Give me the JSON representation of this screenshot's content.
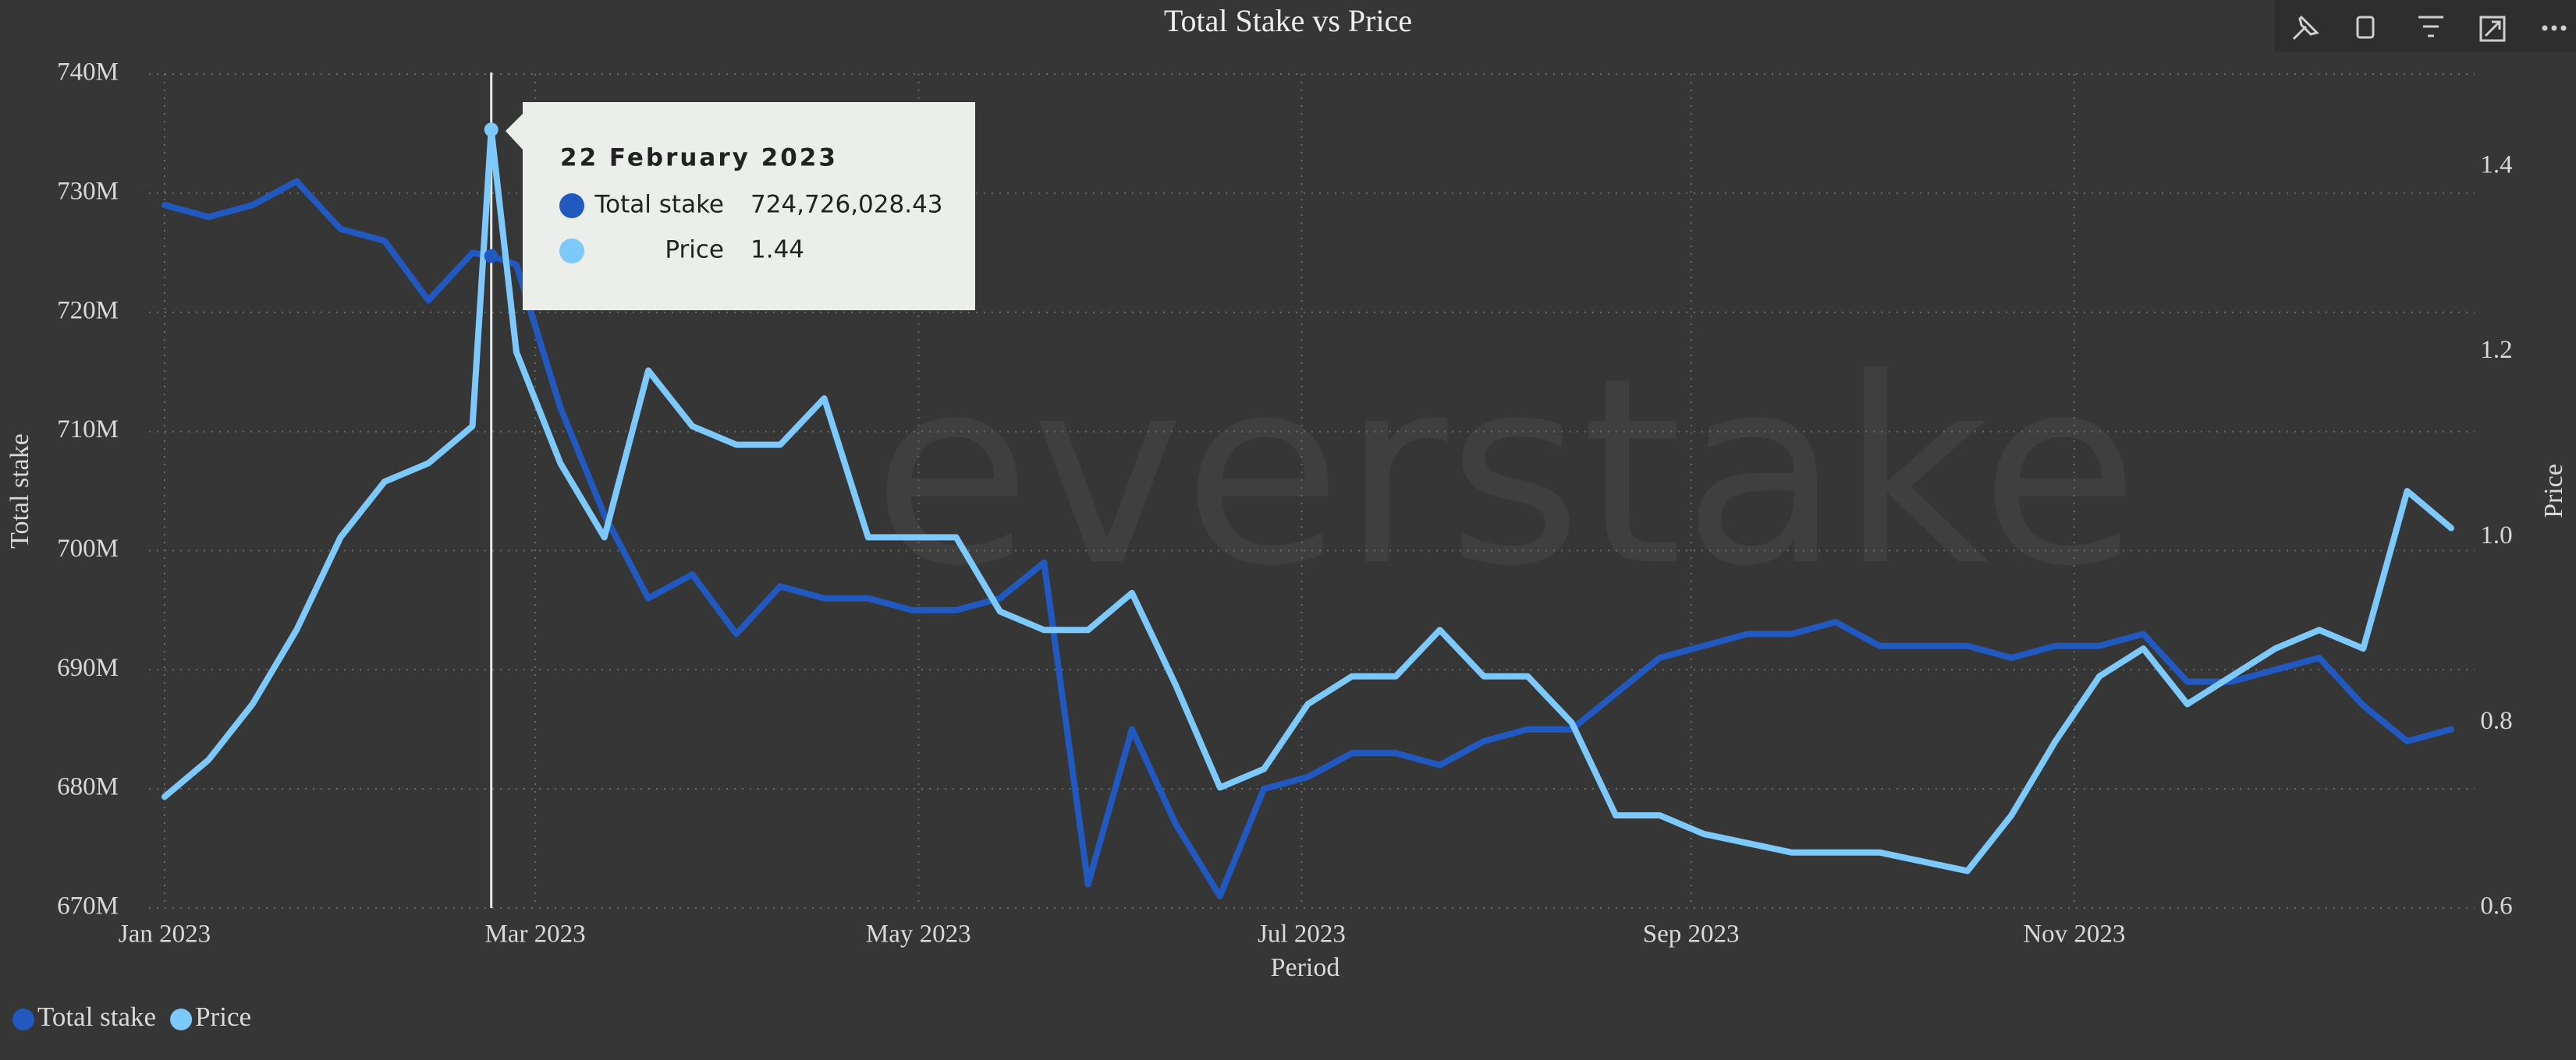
{
  "chart_data": {
    "type": "line",
    "title": "Total Stake vs Price",
    "watermark": "everstake",
    "x_label": "Period",
    "y_label": "Total stake",
    "y2_label": "Price",
    "x": [
      "2023-01-01",
      "2023-01-08",
      "2023-01-15",
      "2023-01-22",
      "2023-01-29",
      "2023-02-05",
      "2023-02-12",
      "2023-02-19",
      "2023-02-22",
      "2023-02-26",
      "2023-03-05",
      "2023-03-12",
      "2023-03-19",
      "2023-03-26",
      "2023-04-02",
      "2023-04-09",
      "2023-04-16",
      "2023-04-23",
      "2023-04-30",
      "2023-05-07",
      "2023-05-14",
      "2023-05-21",
      "2023-05-28",
      "2023-06-04",
      "2023-06-11",
      "2023-06-18",
      "2023-06-25",
      "2023-07-02",
      "2023-07-09",
      "2023-07-16",
      "2023-07-23",
      "2023-07-30",
      "2023-08-06",
      "2023-08-13",
      "2023-08-20",
      "2023-08-27",
      "2023-09-03",
      "2023-09-10",
      "2023-09-17",
      "2023-09-24",
      "2023-10-01",
      "2023-10-08",
      "2023-10-15",
      "2023-10-22",
      "2023-10-29",
      "2023-11-05",
      "2023-11-12",
      "2023-11-19",
      "2023-11-26",
      "2023-12-03",
      "2023-12-10",
      "2023-12-17",
      "2023-12-24",
      "2023-12-31"
    ],
    "series": [
      {
        "name": "Total stake",
        "color": "#2259c0",
        "values": [
          729,
          728,
          729,
          731,
          727,
          726,
          721,
          725,
          724.72602843,
          724,
          712,
          703,
          696,
          698,
          693,
          697,
          696,
          696,
          695,
          695,
          696,
          699,
          672,
          685,
          677,
          671,
          680,
          681,
          683,
          683,
          682,
          684,
          685,
          685,
          688,
          691,
          692,
          693,
          693,
          694,
          692,
          692,
          692,
          691,
          692,
          692,
          693,
          689,
          689,
          690,
          691,
          687,
          684,
          685
        ]
      },
      {
        "name": "Price",
        "color": "#7ec9fb",
        "axis": "y2",
        "values": [
          0.72,
          0.76,
          0.82,
          0.9,
          1.0,
          1.06,
          1.08,
          1.12,
          1.44,
          1.2,
          1.08,
          1.0,
          1.18,
          1.12,
          1.1,
          1.1,
          1.15,
          1.0,
          1.0,
          1.0,
          0.92,
          0.9,
          0.9,
          0.94,
          0.84,
          0.73,
          0.75,
          0.82,
          0.85,
          0.85,
          0.9,
          0.85,
          0.85,
          0.8,
          0.7,
          0.7,
          0.68,
          0.67,
          0.66,
          0.66,
          0.66,
          0.65,
          0.64,
          0.7,
          0.78,
          0.85,
          0.88,
          0.82,
          0.85,
          0.88,
          0.9,
          0.88,
          1.05,
          1.01
        ]
      }
    ],
    "xlim": [
      "2023-01-01",
      "2023-12-31"
    ],
    "xticks": [
      {
        "value": "2023-01-01",
        "label": "Jan 2023"
      },
      {
        "value": "2023-03-01",
        "label": "Mar 2023"
      },
      {
        "value": "2023-05-01",
        "label": "May 2023"
      },
      {
        "value": "2023-07-01",
        "label": "Jul 2023"
      },
      {
        "value": "2023-09-01",
        "label": "Sep 2023"
      },
      {
        "value": "2023-11-01",
        "label": "Nov 2023"
      }
    ],
    "ylim": [
      670,
      740
    ],
    "yticks": [
      {
        "value": 670,
        "label": "670M"
      },
      {
        "value": 680,
        "label": "680M"
      },
      {
        "value": 690,
        "label": "690M"
      },
      {
        "value": 700,
        "label": "700M"
      },
      {
        "value": 710,
        "label": "710M"
      },
      {
        "value": 720,
        "label": "720M"
      },
      {
        "value": 730,
        "label": "730M"
      },
      {
        "value": 740,
        "label": "740M"
      }
    ],
    "y2lim": [
      0.6,
      1.5
    ],
    "y2ticks": [
      0.6,
      0.8,
      {
        "value": 1,
        "label": "1.0"
      },
      1.2,
      1.4
    ],
    "grid": true,
    "legend": "bottom-left",
    "tooltip": {
      "x": "2023-02-22",
      "title": "22 February 2023",
      "value_labels": [
        "724,726,028.43",
        "1.44"
      ]
    }
  }
}
